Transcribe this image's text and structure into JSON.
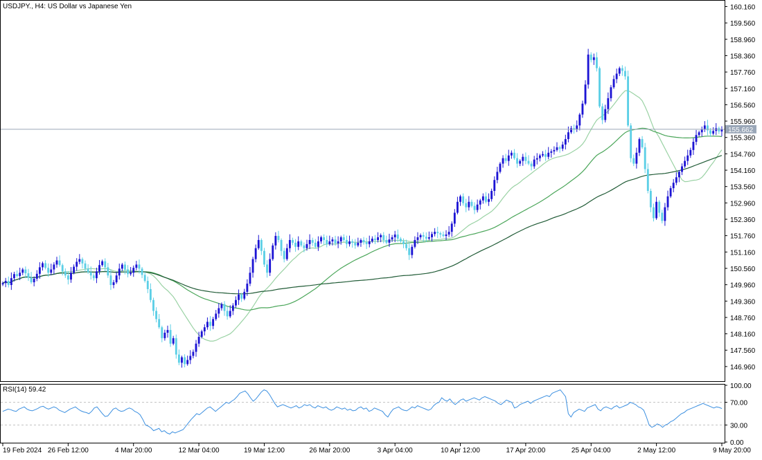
{
  "header": {
    "symbol_line": "USDJPY., H4:  US Dollar vs Japanese Yen"
  },
  "current_price": "155.662",
  "rsi": {
    "label": "RSI(14) 59.42",
    "period": 14,
    "value": 59.42,
    "axis_labels": [
      "100.00",
      "70.00",
      "30.00",
      "0.00"
    ],
    "levels": [
      70,
      30
    ],
    "values": [
      54,
      56,
      58,
      57,
      55,
      54,
      58,
      60,
      62,
      58,
      56,
      55,
      57,
      59,
      62,
      63,
      60,
      58,
      60,
      62,
      60,
      56,
      54,
      52,
      55,
      58,
      60,
      62,
      58,
      55,
      53,
      52,
      50,
      54,
      60,
      62,
      56,
      50,
      45,
      46,
      52,
      58,
      60,
      56,
      54,
      55,
      58,
      60,
      58,
      54,
      52,
      48,
      40,
      30,
      28,
      25,
      20,
      22,
      24,
      18,
      20,
      16,
      14,
      18,
      16,
      18,
      20,
      22,
      28,
      34,
      40,
      45,
      50,
      48,
      52,
      56,
      60,
      62,
      58,
      54,
      58,
      62,
      66,
      70,
      68,
      72,
      75,
      80,
      86,
      88,
      90,
      85,
      78,
      72,
      76,
      82,
      88,
      92,
      90,
      84,
      76,
      68,
      62,
      64,
      66,
      64,
      62,
      60,
      62,
      64,
      60,
      62,
      66,
      64,
      66,
      62,
      60,
      64,
      62,
      60,
      62,
      58,
      56,
      58,
      62,
      60,
      58,
      60,
      56,
      58,
      55,
      56,
      60,
      62,
      58,
      60,
      54,
      56,
      60,
      58,
      56,
      54,
      48,
      44,
      52,
      58,
      60,
      62,
      58,
      56,
      55,
      58,
      62,
      60,
      64,
      62,
      60,
      58,
      56,
      58,
      64,
      68,
      70,
      78,
      74,
      72,
      76,
      70,
      66,
      70,
      74,
      76,
      72,
      74,
      76,
      78,
      76,
      74,
      78,
      80,
      78,
      76,
      74,
      72,
      68,
      66,
      70,
      74,
      72,
      70,
      60,
      62,
      66,
      68,
      70,
      72,
      68,
      72,
      74,
      76,
      78,
      80,
      82,
      80,
      86,
      88,
      90,
      92,
      86,
      80,
      50,
      44,
      52,
      55,
      58,
      56,
      54,
      60,
      62,
      64,
      66,
      58,
      55,
      60,
      62,
      60,
      58,
      62,
      64,
      60,
      62,
      64,
      66,
      70,
      68,
      66,
      62,
      60,
      56,
      44,
      30,
      26,
      28,
      32,
      30,
      26,
      30,
      32,
      36,
      38,
      42,
      46,
      50,
      52,
      56,
      58,
      60,
      62,
      64,
      66,
      68,
      66,
      64,
      62,
      60,
      62,
      61,
      59
    ]
  },
  "chart_data": {
    "type": "candlestick",
    "title": "USDJPY., H4:  US Dollar vs Japanese Yen",
    "ylim": [
      146.45,
      160.35
    ],
    "y_ticks": [
      "160.160",
      "159.560",
      "158.960",
      "158.360",
      "157.760",
      "157.160",
      "156.560",
      "155.960",
      "155.360",
      "154.760",
      "154.160",
      "153.560",
      "152.960",
      "152.360",
      "151.760",
      "151.160",
      "150.560",
      "149.960",
      "149.360",
      "148.760",
      "148.160",
      "147.560",
      "146.960"
    ],
    "x_labels": [
      "19 Feb 2024",
      "26 Feb 12:00",
      "4 Mar 20:00",
      "12 Mar 04:00",
      "19 Mar 12:00",
      "26 Mar 20:00",
      "3 Apr 04:00",
      "10 Apr 12:00",
      "17 Apr 20:00",
      "25 Apr 04:00",
      "2 May 12:00",
      "9 May 20:00"
    ],
    "current_price": 155.662,
    "colors": {
      "bull": "#1c14d4",
      "bear": "#5ccfe6",
      "ma_fast": "#9ad2a4",
      "ma_mid": "#49a558",
      "ma_slow": "#1f5a35",
      "price_line": "#9aa7b8",
      "rsi_line": "#3b8fe0"
    },
    "closes": [
      150.02,
      150.1,
      149.95,
      150.2,
      150.35,
      150.28,
      150.4,
      150.52,
      150.38,
      150.22,
      150.05,
      150.18,
      150.36,
      150.6,
      150.75,
      150.58,
      150.4,
      150.52,
      150.7,
      150.85,
      150.68,
      150.45,
      150.3,
      150.15,
      150.4,
      150.62,
      150.8,
      150.9,
      150.74,
      150.55,
      150.42,
      150.3,
      150.2,
      150.45,
      150.68,
      150.82,
      150.6,
      150.3,
      149.95,
      150.05,
      150.3,
      150.55,
      150.7,
      150.52,
      150.35,
      150.4,
      150.58,
      150.7,
      150.55,
      150.32,
      150.1,
      149.8,
      149.4,
      149.0,
      148.7,
      148.4,
      148.0,
      148.2,
      148.3,
      147.8,
      148.0,
      147.4,
      147.1,
      147.3,
      147.05,
      147.2,
      147.35,
      147.5,
      147.8,
      148.05,
      148.25,
      148.4,
      148.6,
      148.45,
      148.7,
      148.9,
      149.1,
      149.25,
      149.0,
      148.8,
      149.0,
      149.2,
      149.4,
      149.6,
      149.45,
      149.7,
      150.0,
      150.4,
      150.9,
      151.3,
      151.6,
      151.2,
      150.7,
      150.4,
      150.9,
      151.4,
      151.75,
      151.6,
      151.2,
      150.9,
      151.3,
      151.6,
      151.5,
      151.35,
      151.55,
      151.4,
      151.3,
      151.45,
      151.6,
      151.5,
      151.35,
      151.55,
      151.7,
      151.6,
      151.45,
      151.55,
      151.62,
      151.48,
      151.55,
      151.7,
      151.6,
      151.45,
      151.55,
      151.5,
      151.4,
      151.5,
      151.6,
      151.52,
      151.45,
      151.55,
      151.65,
      151.6,
      151.7,
      151.78,
      151.6,
      151.5,
      151.62,
      151.7,
      151.8,
      151.65,
      151.55,
      151.45,
      151.3,
      151.05,
      151.35,
      151.6,
      151.7,
      151.78,
      151.72,
      151.65,
      151.7,
      151.82,
      151.9,
      151.85,
      151.8,
      151.75,
      151.8,
      151.9,
      152.2,
      152.6,
      153.0,
      153.2,
      152.95,
      152.8,
      153.0,
      152.85,
      152.7,
      152.9,
      153.05,
      153.2,
      153.0,
      153.1,
      153.4,
      153.8,
      154.1,
      154.4,
      154.6,
      154.5,
      154.7,
      154.8,
      154.6,
      154.4,
      154.5,
      154.65,
      154.5,
      154.4,
      154.3,
      154.55,
      154.6,
      154.7,
      154.75,
      154.65,
      154.8,
      154.85,
      154.9,
      155.0,
      154.95,
      155.1,
      155.3,
      155.55,
      155.7,
      155.65,
      155.8,
      156.2,
      156.6,
      157.3,
      158.4,
      158.2,
      158.3,
      157.9,
      156.5,
      156.0,
      156.4,
      156.8,
      157.2,
      157.5,
      157.7,
      157.9,
      157.8,
      157.6,
      155.8,
      154.6,
      154.4,
      154.8,
      155.3,
      155.0,
      154.2,
      153.4,
      152.8,
      152.4,
      153.0,
      152.6,
      152.3,
      152.8,
      153.2,
      153.5,
      153.7,
      153.9,
      154.1,
      154.3,
      154.5,
      154.7,
      154.9,
      155.2,
      155.45,
      155.55,
      155.65,
      155.8,
      155.62,
      155.5,
      155.6,
      155.7,
      155.58,
      155.662
    ]
  }
}
